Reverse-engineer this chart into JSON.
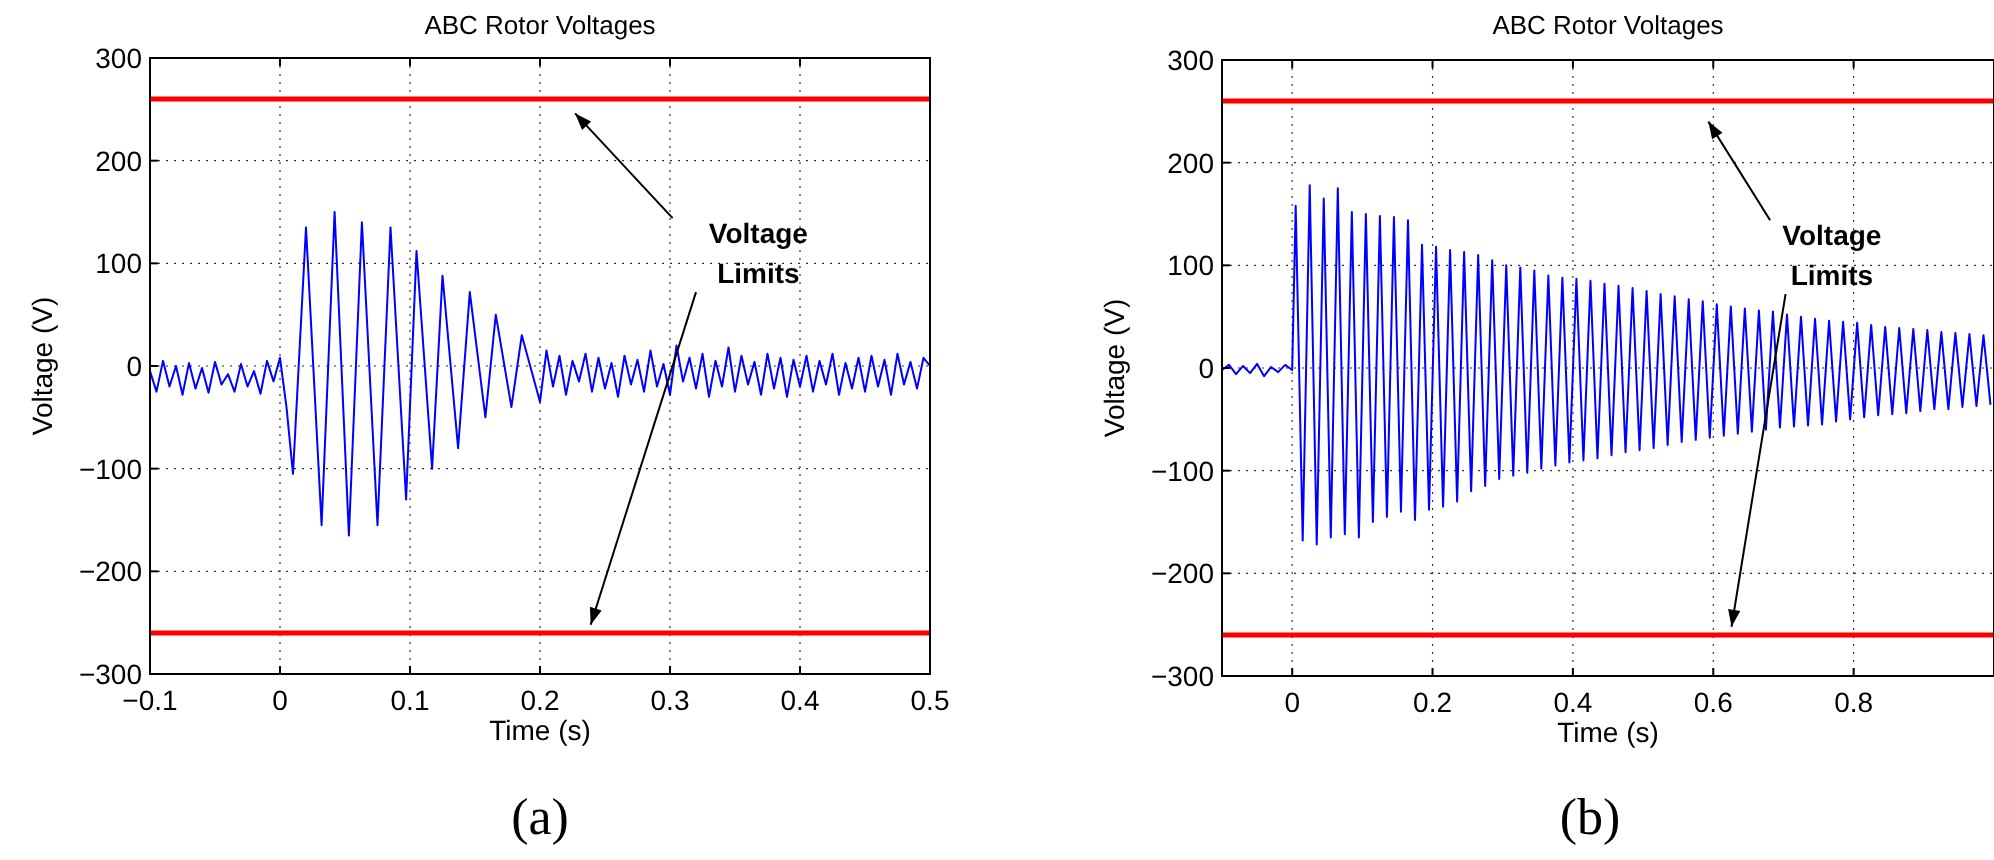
{
  "chart_data": [
    {
      "type": "line",
      "title": "ABC Rotor Voltages",
      "xlabel": "Time (s)",
      "ylabel": "Voltage (V)",
      "grid": true,
      "xlim": [
        -0.1,
        0.5
      ],
      "ylim": [
        -300,
        300
      ],
      "xticks": [
        {
          "value": -0.1,
          "label": "−0.1"
        },
        0,
        0.1,
        0.2,
        0.3,
        0.4,
        0.5
      ],
      "yticks": [
        {
          "value": -300,
          "label": "−300"
        },
        {
          "value": -200,
          "label": "−200"
        },
        {
          "value": -100,
          "label": "−100"
        },
        0,
        100,
        200,
        300
      ],
      "x": [
        -0.1,
        -0.095,
        -0.09,
        -0.085,
        -0.08,
        -0.075,
        -0.07,
        -0.065,
        -0.06,
        -0.055,
        -0.05,
        -0.045,
        -0.04,
        -0.035,
        -0.03,
        -0.025,
        -0.02,
        -0.015,
        -0.01,
        -0.005,
        0,
        0.005,
        0.01,
        0.02,
        0.032,
        0.042,
        0.053,
        0.063,
        0.075,
        0.085,
        0.097,
        0.105,
        0.117,
        0.125,
        0.137,
        0.146,
        0.158,
        0.166,
        0.178,
        0.186,
        0.2,
        0.205,
        0.21,
        0.215,
        0.22,
        0.225,
        0.23,
        0.235,
        0.24,
        0.245,
        0.25,
        0.255,
        0.26,
        0.265,
        0.27,
        0.275,
        0.28,
        0.285,
        0.29,
        0.295,
        0.3,
        0.305,
        0.31,
        0.315,
        0.32,
        0.325,
        0.33,
        0.335,
        0.34,
        0.345,
        0.35,
        0.355,
        0.36,
        0.365,
        0.37,
        0.375,
        0.38,
        0.385,
        0.39,
        0.395,
        0.4,
        0.405,
        0.41,
        0.415,
        0.42,
        0.425,
        0.43,
        0.435,
        0.44,
        0.445,
        0.45,
        0.455,
        0.46,
        0.465,
        0.47,
        0.475,
        0.48,
        0.485,
        0.49,
        0.495,
        0.5
      ],
      "series": [
        {
          "color": "#0000ff",
          "values": [
            -5,
            -25,
            5,
            -20,
            0,
            -28,
            3,
            -22,
            -2,
            -26,
            4,
            -18,
            -8,
            -25,
            2,
            -20,
            -5,
            -27,
            5,
            -15,
            8,
            -40,
            -105,
            135,
            -155,
            150,
            -165,
            140,
            -155,
            135,
            -130,
            112,
            -100,
            88,
            -80,
            72,
            -50,
            50,
            -40,
            30,
            -35,
            15,
            -20,
            10,
            -28,
            5,
            -15,
            12,
            -25,
            8,
            -22,
            3,
            -30,
            10,
            -18,
            6,
            -25,
            15,
            -20,
            2,
            -28,
            20,
            -15,
            8,
            -22,
            12,
            -30,
            5,
            -20,
            18,
            -25,
            10,
            -18,
            4,
            -28,
            12,
            -22,
            8,
            -30,
            6,
            -20,
            10,
            -25,
            5,
            -18,
            12,
            -28,
            3,
            -22,
            8,
            -25,
            10,
            -20,
            6,
            -28,
            12,
            -18,
            4,
            -22,
            8,
            0
          ]
        }
      ],
      "ref_lines": [
        {
          "axis": "y",
          "value": 260,
          "color": "#ff0000"
        },
        {
          "axis": "y",
          "value": -260,
          "color": "#ff0000"
        }
      ],
      "annotations": [
        "Voltage Limits",
        "(a)"
      ]
    },
    {
      "type": "line",
      "title": "ABC Rotor Voltages",
      "xlabel": "Time (s)",
      "ylabel": "Voltage (V)",
      "grid": true,
      "xlim": [
        -0.1,
        1
      ],
      "ylim": [
        -300,
        300
      ],
      "xticks": [
        0,
        0.2,
        0.4,
        0.6,
        0.8
      ],
      "yticks": [
        {
          "value": -300,
          "label": "−300"
        },
        {
          "value": -200,
          "label": "−200"
        },
        {
          "value": -100,
          "label": "−100"
        },
        0,
        100,
        200,
        300
      ],
      "x": [
        -0.1,
        -0.09,
        -0.08,
        -0.07,
        -0.06,
        -0.05,
        -0.04,
        -0.03,
        -0.02,
        -0.01,
        0,
        0.005,
        0.015,
        0.025,
        0.035,
        0.045,
        0.055,
        0.065,
        0.075,
        0.085,
        0.095,
        0.105,
        0.115,
        0.125,
        0.135,
        0.145,
        0.155,
        0.165,
        0.175,
        0.185,
        0.195,
        0.205,
        0.215,
        0.225,
        0.235,
        0.245,
        0.255,
        0.265,
        0.275,
        0.285,
        0.295,
        0.305,
        0.315,
        0.325,
        0.335,
        0.345,
        0.355,
        0.365,
        0.375,
        0.385,
        0.395,
        0.405,
        0.415,
        0.425,
        0.435,
        0.445,
        0.455,
        0.465,
        0.475,
        0.485,
        0.495,
        0.505,
        0.515,
        0.525,
        0.535,
        0.545,
        0.555,
        0.565,
        0.575,
        0.585,
        0.595,
        0.605,
        0.615,
        0.625,
        0.635,
        0.645,
        0.655,
        0.665,
        0.675,
        0.685,
        0.695,
        0.705,
        0.715,
        0.725,
        0.735,
        0.745,
        0.755,
        0.765,
        0.775,
        0.785,
        0.795,
        0.805,
        0.815,
        0.825,
        0.835,
        0.845,
        0.855,
        0.865,
        0.875,
        0.885,
        0.895,
        0.905,
        0.915,
        0.925,
        0.935,
        0.945,
        0.955,
        0.965,
        0.975,
        0.985,
        0.995
      ],
      "series": [
        {
          "color": "#0000ff",
          "values": [
            -2,
            3,
            -6,
            2,
            -5,
            4,
            -8,
            1,
            -4,
            3,
            -2,
            158,
            -168,
            178,
            -172,
            165,
            -165,
            175,
            -162,
            152,
            -165,
            150,
            -150,
            148,
            -145,
            147,
            -140,
            144,
            -148,
            120,
            -138,
            118,
            -135,
            115,
            -130,
            113,
            -120,
            110,
            -115,
            105,
            -108,
            100,
            -105,
            98,
            -102,
            95,
            -98,
            90,
            -95,
            88,
            -92,
            87,
            -90,
            85,
            -88,
            82,
            -85,
            80,
            -82,
            78,
            -80,
            75,
            -78,
            72,
            -75,
            70,
            -72,
            67,
            -70,
            65,
            -68,
            62,
            -66,
            60,
            -64,
            58,
            -62,
            56,
            -60,
            55,
            -58,
            52,
            -57,
            50,
            -56,
            48,
            -55,
            46,
            -52,
            45,
            -50,
            44,
            -48,
            42,
            -46,
            40,
            -45,
            39,
            -44,
            38,
            -42,
            37,
            -40,
            35,
            -40,
            34,
            -38,
            33,
            -37,
            32,
            -36
          ]
        }
      ],
      "ref_lines": [
        {
          "axis": "y",
          "value": 260,
          "color": "#ff0000"
        },
        {
          "axis": "y",
          "value": -260,
          "color": "#ff0000"
        }
      ],
      "annotations": [
        "Voltage Limits",
        "(b)"
      ]
    }
  ]
}
